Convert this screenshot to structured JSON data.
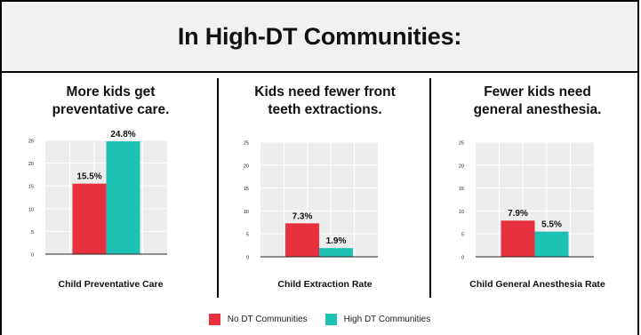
{
  "header": {
    "title": "In High-DT Communities:"
  },
  "legend": {
    "items": [
      {
        "label": "No DT Communities",
        "color": "#e8313f"
      },
      {
        "label": "High DT Communities",
        "color": "#1ec2b5"
      }
    ]
  },
  "chart_data": [
    {
      "type": "bar",
      "title_lines": [
        "More kids get",
        "preventative care."
      ],
      "xlabel": "Child Preventative Care",
      "ylabel": "",
      "ylim": [
        0,
        25
      ],
      "yticks": [
        0,
        5,
        10,
        15,
        20,
        25
      ],
      "grid": true,
      "categories": [
        "No DT Communities",
        "High DT Communities"
      ],
      "values": [
        15.5,
        24.8
      ],
      "data_labels": [
        "15.5%",
        "24.8%"
      ]
    },
    {
      "type": "bar",
      "title_lines": [
        "Kids need fewer front",
        "teeth extractions."
      ],
      "xlabel": "Child Extraction Rate",
      "ylabel": "",
      "ylim": [
        0,
        25
      ],
      "yticks": [
        0,
        5,
        10,
        15,
        20,
        25
      ],
      "grid": true,
      "categories": [
        "No DT Communities",
        "High DT Communities"
      ],
      "values": [
        7.3,
        1.9
      ],
      "data_labels": [
        "7.3%",
        "1.9%"
      ]
    },
    {
      "type": "bar",
      "title_lines": [
        "Fewer kids need",
        "general anesthesia."
      ],
      "xlabel": "Child General Anesthesia Rate",
      "ylabel": "",
      "ylim": [
        0,
        25
      ],
      "yticks": [
        0,
        5,
        10,
        15,
        20,
        25
      ],
      "grid": true,
      "categories": [
        "No DT Communities",
        "High DT Communities"
      ],
      "values": [
        7.9,
        5.5
      ],
      "data_labels": [
        "7.9%",
        "5.5%"
      ]
    }
  ]
}
